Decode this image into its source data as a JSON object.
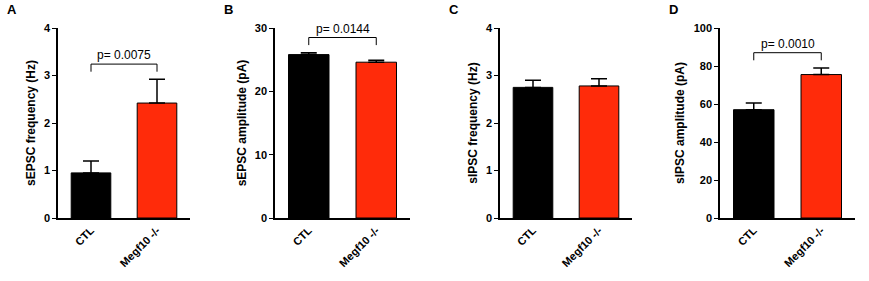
{
  "chart_data": [
    {
      "type": "bar",
      "title": "A",
      "categories": [
        "CTL",
        "Megf10 -/-"
      ],
      "values": [
        0.95,
        2.42
      ],
      "error": [
        0.25,
        0.5
      ],
      "colors": [
        "#000000",
        "#ff2b0a"
      ],
      "ylabel": "sEPSC frequency (Hz)",
      "ylim": [
        0,
        4
      ],
      "yticks": [
        0,
        1,
        2,
        3,
        4
      ],
      "grid": false,
      "annotations": [
        {
          "text": "p= 0.0075"
        }
      ]
    },
    {
      "type": "bar",
      "title": "B",
      "categories": [
        "CTL",
        "Megf10 -/-"
      ],
      "values": [
        25.8,
        24.6
      ],
      "error": [
        0.3,
        0.3
      ],
      "colors": [
        "#000000",
        "#ff2b0a"
      ],
      "ylabel": "sEPSC amplitude (pA)",
      "ylim": [
        0,
        30
      ],
      "yticks": [
        0,
        10,
        20,
        30
      ],
      "grid": false,
      "annotations": [
        {
          "text": "p= 0.0144"
        }
      ]
    },
    {
      "type": "bar",
      "title": "C",
      "categories": [
        "CTL",
        "Megf10 -/-"
      ],
      "values": [
        2.75,
        2.78
      ],
      "error": [
        0.15,
        0.15
      ],
      "colors": [
        "#000000",
        "#ff2b0a"
      ],
      "ylabel": "sIPSC frequency (Hz)",
      "ylim": [
        0,
        4
      ],
      "yticks": [
        0,
        1,
        2,
        3,
        4
      ],
      "grid": false,
      "annotations": []
    },
    {
      "type": "bar",
      "title": "D",
      "categories": [
        "CTL",
        "Megf10 -/-"
      ],
      "values": [
        57,
        75.5
      ],
      "error": [
        3.5,
        3.5
      ],
      "colors": [
        "#000000",
        "#ff2b0a"
      ],
      "ylabel": "sIPSC amplitude (pA)",
      "ylim": [
        0,
        100
      ],
      "yticks": [
        0,
        20,
        40,
        60,
        80,
        100
      ],
      "grid": false,
      "annotations": [
        {
          "text": "p= 0.0010"
        }
      ]
    }
  ]
}
